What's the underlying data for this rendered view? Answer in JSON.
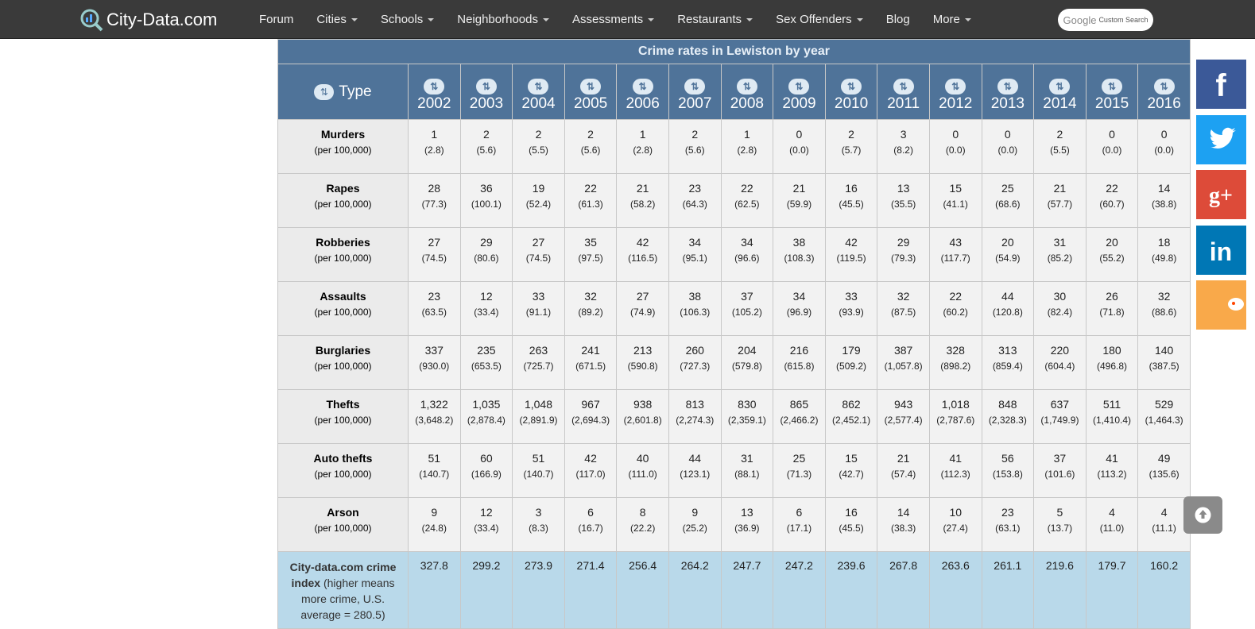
{
  "nav": {
    "logo": "City-Data.com",
    "items": [
      "Forum",
      "Cities",
      "Schools",
      "Neighborhoods",
      "Assessments",
      "Restaurants",
      "Sex Offenders",
      "Blog",
      "More"
    ],
    "search_brand": "Google",
    "search_label": "Custom Search"
  },
  "table": {
    "title": "Crime rates in Lewiston by year",
    "type_header": "Type",
    "years": [
      "2002",
      "2003",
      "2004",
      "2005",
      "2006",
      "2007",
      "2008",
      "2009",
      "2010",
      "2011",
      "2012",
      "2013",
      "2014",
      "2015",
      "2016"
    ],
    "rows": [
      {
        "name": "Murders",
        "unit": "(per 100,000)",
        "counts": [
          "1",
          "2",
          "2",
          "2",
          "1",
          "2",
          "1",
          "0",
          "2",
          "3",
          "0",
          "0",
          "2",
          "0",
          "0"
        ],
        "rates": [
          "(2.8)",
          "(5.6)",
          "(5.5)",
          "(5.6)",
          "(2.8)",
          "(5.6)",
          "(2.8)",
          "(0.0)",
          "(5.7)",
          "(8.2)",
          "(0.0)",
          "(0.0)",
          "(5.5)",
          "(0.0)",
          "(0.0)"
        ]
      },
      {
        "name": "Rapes",
        "unit": "(per 100,000)",
        "counts": [
          "28",
          "36",
          "19",
          "22",
          "21",
          "23",
          "22",
          "21",
          "16",
          "13",
          "15",
          "25",
          "21",
          "22",
          "14"
        ],
        "rates": [
          "(77.3)",
          "(100.1)",
          "(52.4)",
          "(61.3)",
          "(58.2)",
          "(64.3)",
          "(62.5)",
          "(59.9)",
          "(45.5)",
          "(35.5)",
          "(41.1)",
          "(68.6)",
          "(57.7)",
          "(60.7)",
          "(38.8)"
        ]
      },
      {
        "name": "Robberies",
        "unit": "(per 100,000)",
        "counts": [
          "27",
          "29",
          "27",
          "35",
          "42",
          "34",
          "34",
          "38",
          "42",
          "29",
          "43",
          "20",
          "31",
          "20",
          "18"
        ],
        "rates": [
          "(74.5)",
          "(80.6)",
          "(74.5)",
          "(97.5)",
          "(116.5)",
          "(95.1)",
          "(96.6)",
          "(108.3)",
          "(119.5)",
          "(79.3)",
          "(117.7)",
          "(54.9)",
          "(85.2)",
          "(55.2)",
          "(49.8)"
        ]
      },
      {
        "name": "Assaults",
        "unit": "(per 100,000)",
        "counts": [
          "23",
          "12",
          "33",
          "32",
          "27",
          "38",
          "37",
          "34",
          "33",
          "32",
          "22",
          "44",
          "30",
          "26",
          "32"
        ],
        "rates": [
          "(63.5)",
          "(33.4)",
          "(91.1)",
          "(89.2)",
          "(74.9)",
          "(106.3)",
          "(105.2)",
          "(96.9)",
          "(93.9)",
          "(87.5)",
          "(60.2)",
          "(120.8)",
          "(82.4)",
          "(71.8)",
          "(88.6)"
        ]
      },
      {
        "name": "Burglaries",
        "unit": "(per 100,000)",
        "counts": [
          "337",
          "235",
          "263",
          "241",
          "213",
          "260",
          "204",
          "216",
          "179",
          "387",
          "328",
          "313",
          "220",
          "180",
          "140"
        ],
        "rates": [
          "(930.0)",
          "(653.5)",
          "(725.7)",
          "(671.5)",
          "(590.8)",
          "(727.3)",
          "(579.8)",
          "(615.8)",
          "(509.2)",
          "(1,057.8)",
          "(898.2)",
          "(859.4)",
          "(604.4)",
          "(496.8)",
          "(387.5)"
        ]
      },
      {
        "name": "Thefts",
        "unit": "(per 100,000)",
        "counts": [
          "1,322",
          "1,035",
          "1,048",
          "967",
          "938",
          "813",
          "830",
          "865",
          "862",
          "943",
          "1,018",
          "848",
          "637",
          "511",
          "529"
        ],
        "rates": [
          "(3,648.2)",
          "(2,878.4)",
          "(2,891.9)",
          "(2,694.3)",
          "(2,601.8)",
          "(2,274.3)",
          "(2,359.1)",
          "(2,466.2)",
          "(2,452.1)",
          "(2,577.4)",
          "(2,787.6)",
          "(2,328.3)",
          "(1,749.9)",
          "(1,410.4)",
          "(1,464.3)"
        ]
      },
      {
        "name": "Auto thefts",
        "unit": "(per 100,000)",
        "counts": [
          "51",
          "60",
          "51",
          "42",
          "40",
          "44",
          "31",
          "25",
          "15",
          "21",
          "41",
          "56",
          "37",
          "41",
          "49"
        ],
        "rates": [
          "(140.7)",
          "(166.9)",
          "(140.7)",
          "(117.0)",
          "(111.0)",
          "(123.1)",
          "(88.1)",
          "(71.3)",
          "(42.7)",
          "(57.4)",
          "(112.3)",
          "(153.8)",
          "(101.6)",
          "(113.2)",
          "(135.6)"
        ]
      },
      {
        "name": "Arson",
        "unit": "(per 100,000)",
        "counts": [
          "9",
          "12",
          "3",
          "6",
          "8",
          "9",
          "13",
          "6",
          "16",
          "14",
          "10",
          "23",
          "5",
          "4",
          "4"
        ],
        "rates": [
          "(24.8)",
          "(33.4)",
          "(8.3)",
          "(16.7)",
          "(22.2)",
          "(25.2)",
          "(36.9)",
          "(17.1)",
          "(45.5)",
          "(38.3)",
          "(27.4)",
          "(63.1)",
          "(13.7)",
          "(11.0)",
          "(11.1)"
        ]
      }
    ],
    "index": {
      "label": "City-data.com crime index",
      "note": "(higher means more crime, U.S. average = 280.5)",
      "values": [
        "327.8",
        "299.2",
        "273.9",
        "271.4",
        "256.4",
        "264.2",
        "247.7",
        "247.2",
        "239.6",
        "267.8",
        "263.6",
        "261.1",
        "219.6",
        "179.7",
        "160.2"
      ]
    }
  }
}
